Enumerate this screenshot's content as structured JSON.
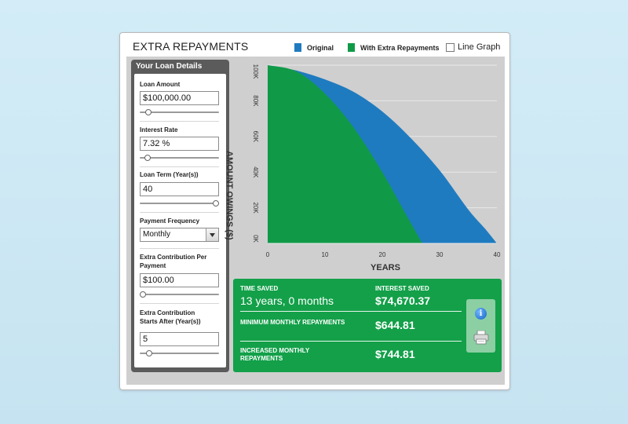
{
  "title": "EXTRA REPAYMENTS",
  "legend": {
    "original": "Original",
    "with_extra": "With Extra Repayments",
    "line_graph": "Line Graph",
    "original_color": "#1f7bc0",
    "with_extra_color": "#109a48"
  },
  "panel": {
    "title": "Your Loan Details",
    "loan_amount": {
      "label": "Loan Amount",
      "value": "$100,000.00",
      "slider_fraction": 0.08
    },
    "interest_rate": {
      "label": "Interest Rate",
      "value": "7.32 %",
      "slider_fraction": 0.06
    },
    "loan_term": {
      "label": "Loan Term (Year(s))",
      "value": "40",
      "slider_fraction": 1.0
    },
    "payment_frequency": {
      "label": "Payment Frequency",
      "value": "Monthly"
    },
    "extra_contribution": {
      "label_line1": "Extra Contribution Per",
      "label_line2": "Payment",
      "value": "$100.00",
      "slider_fraction": 0.0
    },
    "extra_starts": {
      "label_line1": "Extra Contribution",
      "label_line2": "Starts After (Year(s))",
      "value": "5",
      "slider_fraction": 0.09
    }
  },
  "chart_data": {
    "type": "area",
    "xlabel": "YEARS",
    "ylabel": "AMOUNT OWINGS ($)",
    "x_ticks": [
      "0",
      "10",
      "20",
      "30",
      "40"
    ],
    "y_ticks": [
      "0K",
      "20K",
      "40K",
      "60K",
      "80K",
      "100K"
    ],
    "xlim": [
      0,
      40
    ],
    "ylim": [
      0,
      100000
    ],
    "grid": true,
    "series": [
      {
        "name": "Original",
        "color": "#1f7bc0",
        "x": [
          0,
          5,
          10,
          15,
          20,
          25,
          30,
          35,
          38,
          40
        ],
        "y": [
          100000,
          97000,
          92000,
          85000,
          74000,
          59000,
          41000,
          19000,
          8000,
          0
        ]
      },
      {
        "name": "With Extra Repayments",
        "color": "#109a48",
        "x": [
          0,
          5,
          10,
          15,
          20,
          24,
          27
        ],
        "y": [
          100000,
          96500,
          84000,
          65000,
          40000,
          17000,
          0
        ]
      }
    ]
  },
  "results": {
    "time_saved_label": "TIME SAVED",
    "time_saved_value": "13 years, 0 months",
    "interest_saved_label": "INTEREST SAVED",
    "interest_saved_value": "$74,670.37",
    "min_monthly_label": "MINIMUM MONTHLY REPAYMENTS",
    "min_monthly_value": "$644.81",
    "inc_monthly_label_line1": "INCREASED MONTHLY",
    "inc_monthly_label_line2": "REPAYMENTS",
    "inc_monthly_value": "$744.81"
  },
  "icons": {
    "info": "info-icon",
    "print": "printer-icon"
  }
}
